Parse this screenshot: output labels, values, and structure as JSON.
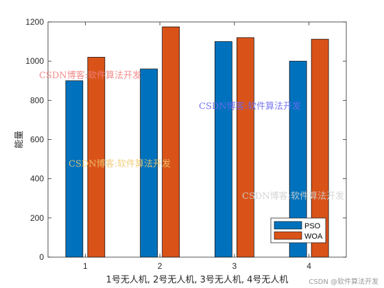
{
  "chart_data": {
    "type": "bar",
    "categories": [
      "1",
      "2",
      "3",
      "4"
    ],
    "series": [
      {
        "name": "PSO",
        "values": [
          900,
          960,
          1100,
          1000
        ],
        "color": "#0072BD"
      },
      {
        "name": "WOA",
        "values": [
          1020,
          1175,
          1120,
          1112
        ],
        "color": "#D95319"
      }
    ],
    "title": "",
    "xlabel": "1号无人机, 2号无人机, 3号无人机, 4号无人机",
    "ylabel": "能量",
    "ylim": [
      0,
      1200
    ],
    "yticks": [
      0,
      200,
      400,
      600,
      800,
      1000,
      1200
    ],
    "grid": false,
    "legend_position": "bottom-right"
  },
  "watermarks": [
    {
      "text": "CSDN博客:软件算法开发",
      "color": "#f08080"
    },
    {
      "text": "CSDN博客:软件算法开发",
      "color": "#6a6af0"
    },
    {
      "text": "CSDN博客:软件算法开发",
      "color": "#f0c870"
    },
    {
      "text": "CSDN博客:软件算法开发",
      "color": "#d0d0d0"
    }
  ],
  "credit": "CSDN @软件算法开发"
}
